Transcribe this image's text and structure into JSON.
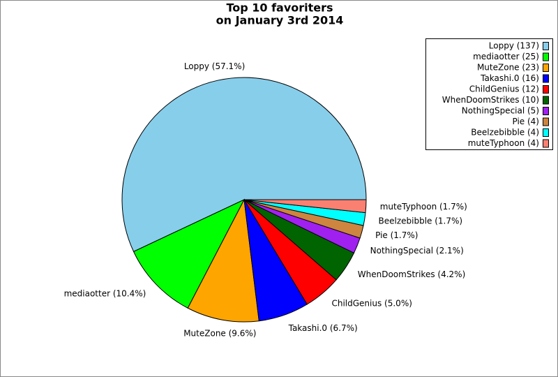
{
  "chart_data": {
    "type": "pie",
    "title": "Top 10 favoriters",
    "subtitle": "on January 3rd 2014",
    "categories": [
      "Loppy (137)",
      "mediaotter (25)",
      "MuteZone (23)",
      "Takashi.0 (16)",
      "ChildGenius (12)",
      "WhenDoomStrikes (10)",
      "NothingSpecial (5)",
      "Pie (4)",
      "Beelzebibble (4)",
      "muteTyphoon (4)"
    ],
    "values": [
      57.1,
      10.4,
      9.6,
      6.7,
      5.0,
      4.2,
      2.1,
      1.7,
      1.7,
      1.7
    ],
    "value_labels": [
      "Loppy (57.1%)",
      "mediaotter (10.4%)",
      "MuteZone (9.6%)",
      "Takashi.0 (6.7%)",
      "ChildGenius (5.0%)",
      "WhenDoomStrikes (4.2%)",
      "NothingSpecial (2.1%)",
      "Pie (1.7%)",
      "Beelzebibble (1.7%)",
      "muteTyphoon (1.7%)"
    ],
    "colors": [
      "#87ceeb",
      "#00ff00",
      "#ffa500",
      "#0000ff",
      "#ff0000",
      "#006400",
      "#a020f0",
      "#cd853f",
      "#00ffff",
      "#fa8072"
    ],
    "legend": "upper right"
  }
}
